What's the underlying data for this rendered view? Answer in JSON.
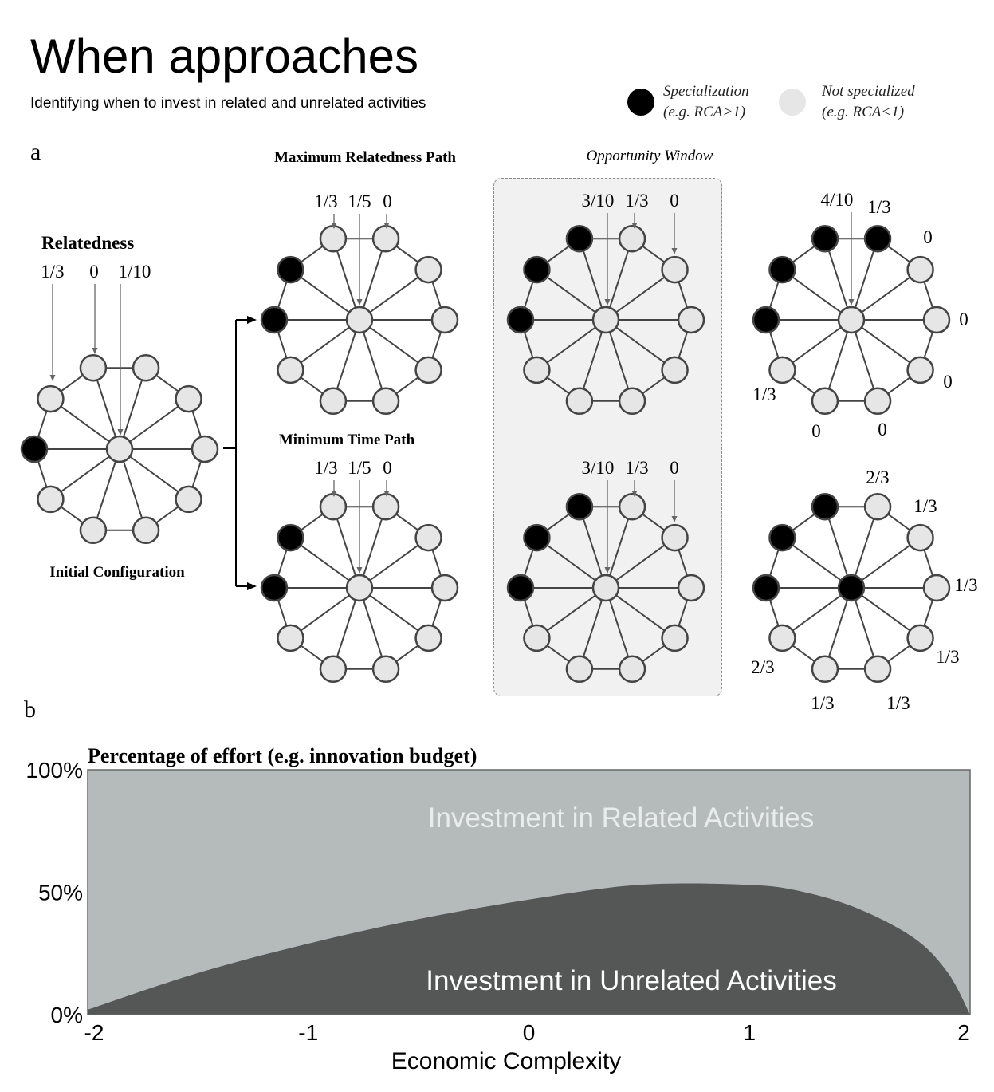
{
  "header": {
    "title": "When approaches",
    "subtitle": "Identifying when to invest in related and unrelated activities"
  },
  "legend": {
    "specialization_line1": "Specialization",
    "specialization_line2": "(e.g. RCA>1)",
    "not_specialized_line1": "Not specialized",
    "not_specialized_line2": "(e.g. RCA<1)",
    "specialized_color": "#000000",
    "not_specialized_color": "#e6e6e6"
  },
  "panel_a": {
    "letter": "a",
    "relatedness_label": "Relatedness",
    "initial_label": "Initial Configuration",
    "max_path_label": "Maximum Relatedness Path",
    "min_path_label": "Minimum Time Path",
    "window_label": "Opportunity Window",
    "initial_values": [
      "1/3",
      "0",
      "1/10"
    ],
    "max_step1_values": [
      "1/3",
      "1/5",
      "0"
    ],
    "max_step2_values": [
      "3/10",
      "1/3",
      "0"
    ],
    "min_step1_values": [
      "1/3",
      "1/5",
      "0"
    ],
    "min_step2_values": [
      "3/10",
      "1/3",
      "0"
    ],
    "max_final_values": [
      "4/10",
      "1/3",
      "0",
      "0",
      "0",
      "0",
      "0",
      "1/3"
    ],
    "min_final_values": [
      "2/3",
      "1/3",
      "1/3",
      "1/3",
      "1/3",
      "1/3",
      "2/3"
    ]
  },
  "panel_b": {
    "letter": "b",
    "chart_data": {
      "type": "area",
      "title": "Percentage of effort (e.g. innovation budget)",
      "xlabel": "Economic Complexity",
      "ylabel": "",
      "xlim": [
        -2,
        2
      ],
      "ylim": [
        0,
        100
      ],
      "x_ticks": [
        "-2",
        "-1",
        "0",
        "1",
        "2"
      ],
      "y_ticks": [
        "0%",
        "50%",
        "100%"
      ],
      "x": [
        -2,
        -1.5,
        -1,
        -0.5,
        0,
        0.5,
        1,
        1.25,
        1.5,
        1.75,
        1.9,
        2
      ],
      "series": [
        {
          "name": "Investment in Unrelated Activities",
          "values": [
            2,
            17,
            29,
            39,
            47,
            53,
            53,
            50,
            43,
            31,
            17,
            0
          ],
          "color": "#555757"
        },
        {
          "name": "Investment in Related Activities",
          "values": [
            98,
            83,
            71,
            61,
            53,
            47,
            47,
            50,
            57,
            69,
            83,
            100
          ],
          "color": "#b5bbbb"
        }
      ]
    }
  }
}
